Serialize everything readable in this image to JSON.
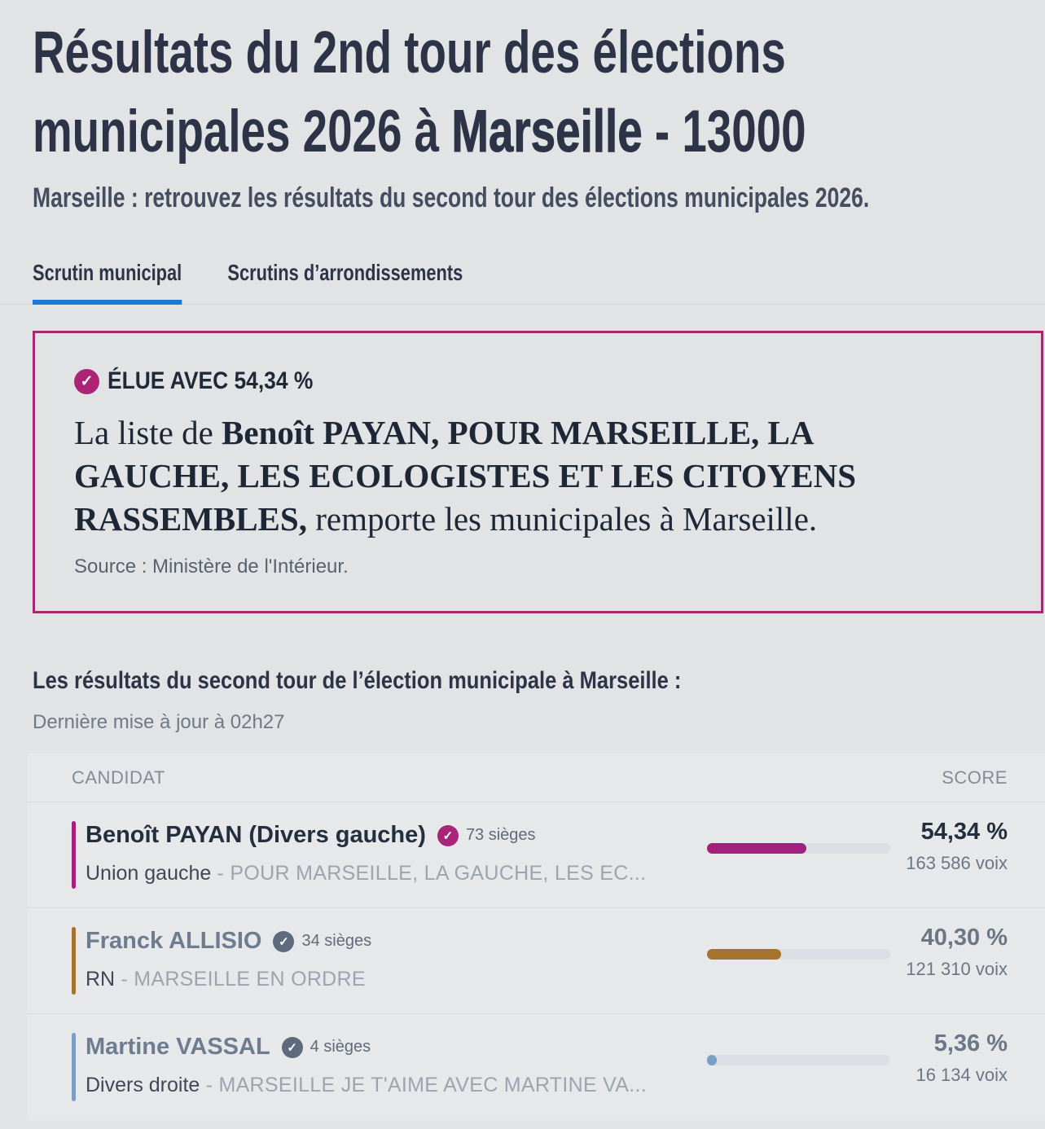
{
  "header": {
    "title": {
      "part1": "Résultats du 2nd tour des élections municipales 2026 à ",
      "city": "Marseille",
      "part2": " - 13000"
    },
    "subtitle": "Marseille : retrouvez les résultats du second tour des élections municipales 2026."
  },
  "tabs": {
    "municipal": "Scrutin municipal",
    "arrondissements": "Scrutins d’arrondissements"
  },
  "icons": {
    "elected_check": "✓",
    "seats_check": "✓"
  },
  "winner_box": {
    "badge": "ÉLUE AVEC 54,34 %",
    "sentence": {
      "prefix": "La liste de ",
      "bold": "Benoît PAYAN, POUR MARSEILLE, LA GAUCHE, LES ECOLOGISTES ET LES CITOYENS RASSEMBLES,",
      "suffix": " remporte les municipales à Marseille."
    },
    "source": "Source : Ministère de l'Intérieur."
  },
  "results": {
    "heading": "Les résultats du second tour de l’élection municipale à Marseille :",
    "last_update": "Dernière mise à jour à 02h27",
    "columns": {
      "candidate": "CANDIDAT",
      "score": "SCORE"
    },
    "rows": [
      {
        "name": "Benoît PAYAN (Divers gauche)",
        "seats": "73 sièges",
        "party": "Union gauche",
        "list": " - POUR MARSEILLE, LA GAUCHE, LES EC...",
        "percent": "54,34 %",
        "votes": "163 586 voix",
        "bar_pct": 54.34,
        "color": "#a3217c",
        "winner": true
      },
      {
        "name": "Franck ALLISIO",
        "seats": "34 sièges",
        "party": "RN",
        "list": " - MARSEILLE EN ORDRE",
        "percent": "40,30 %",
        "votes": "121 310 voix",
        "bar_pct": 40.3,
        "color": "#a4742f",
        "winner": false
      },
      {
        "name": "Martine VASSAL",
        "seats": "4 sièges",
        "party": "Divers droite",
        "list": " - MARSEILLE JE T'AIME AVEC MARTINE VA...",
        "percent": "5,36 %",
        "votes": "16 134 voix",
        "bar_pct": 5.36,
        "color": "#7b9fc4",
        "winner": false
      }
    ]
  },
  "colors": {
    "accent_magenta": "#a62a72",
    "tab_underline_blue": "#1b79d6",
    "bar_track": "#dcdee6",
    "page_background": "#e2e3e5"
  }
}
